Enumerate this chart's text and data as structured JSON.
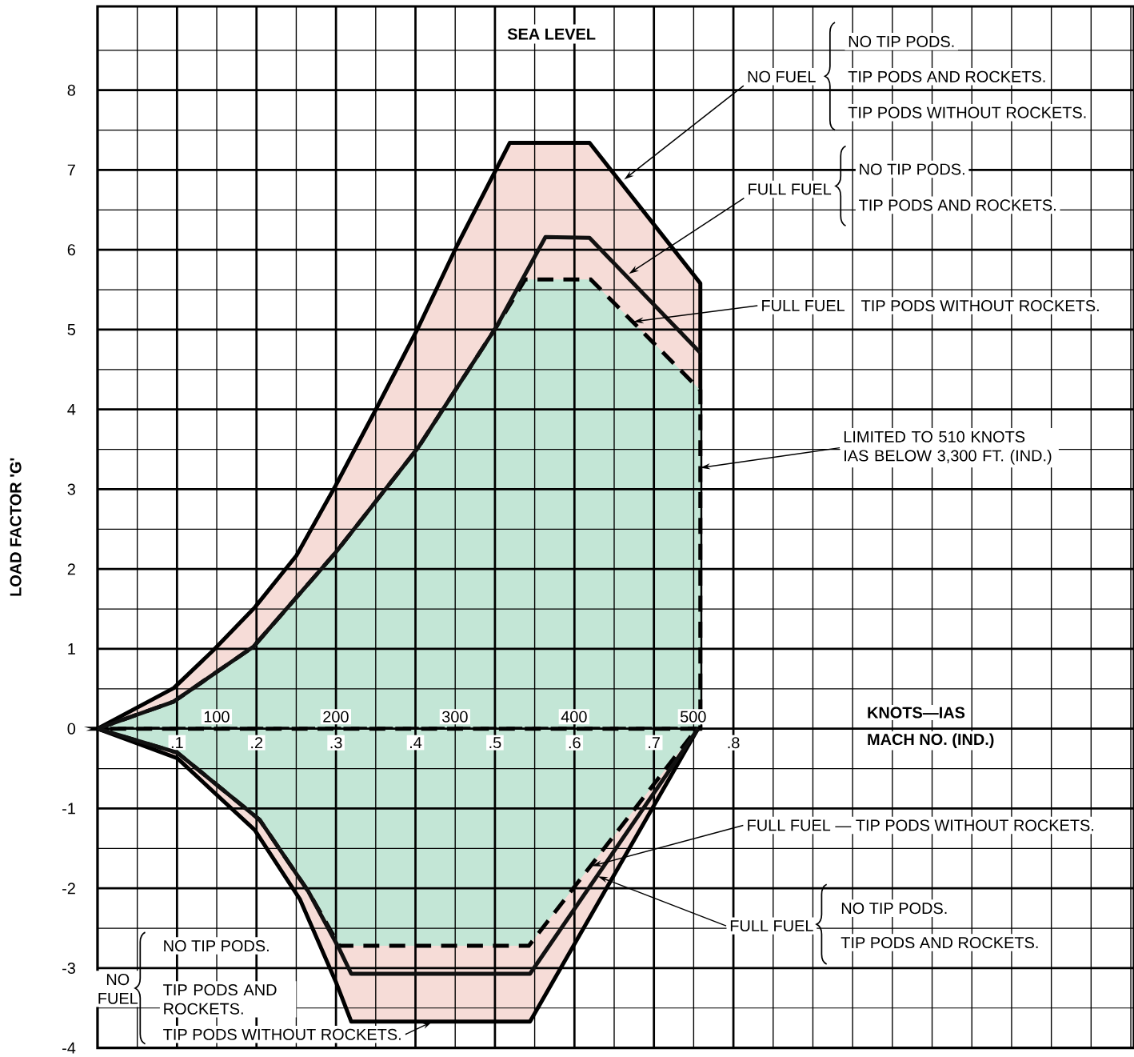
{
  "chart_data": {
    "type": "line",
    "title": "SEA LEVEL",
    "xlabel": "KNOTS—IAS",
    "x2label": "MACH NO. (IND.)",
    "ylabel": "LOAD FACTOR 'G'",
    "xlim": [
      0,
      870
    ],
    "xticks": [
      100,
      200,
      300,
      400,
      500
    ],
    "x2lim": [
      0,
      1.304
    ],
    "x2ticks": [
      {
        "value": 0.05,
        "label": null
      },
      {
        "value": 0.1,
        "label": ".1"
      },
      {
        "value": 0.15,
        "label": null
      },
      {
        "value": 0.2,
        "label": ".2"
      },
      {
        "value": 0.25,
        "label": null
      },
      {
        "value": 0.3,
        "label": ".3"
      },
      {
        "value": 0.35,
        "label": null
      },
      {
        "value": 0.4,
        "label": ".4"
      },
      {
        "value": 0.45,
        "label": null
      },
      {
        "value": 0.5,
        "label": ".5"
      },
      {
        "value": 0.55,
        "label": null
      },
      {
        "value": 0.6,
        "label": ".6"
      },
      {
        "value": 0.65,
        "label": null
      },
      {
        "value": 0.7,
        "label": ".7"
      },
      {
        "value": 0.75,
        "label": null
      },
      {
        "value": 0.8,
        "label": ".8"
      },
      {
        "value": 0.85,
        "label": null
      },
      {
        "value": 0.9,
        "label": null
      },
      {
        "value": 0.95,
        "label": null
      },
      {
        "value": 1.0,
        "label": null
      },
      {
        "value": 1.05,
        "label": null
      },
      {
        "value": 1.1,
        "label": null
      },
      {
        "value": 1.15,
        "label": null
      },
      {
        "value": 1.2,
        "label": null
      },
      {
        "value": 1.25,
        "label": null
      },
      {
        "value": 1.3,
        "label": null
      }
    ],
    "ylim": [
      -4,
      9.05
    ],
    "yticks": [
      -4,
      {
        "value": -3.5,
        "label": null
      },
      -3,
      {
        "value": -2.5,
        "label": null
      },
      -2,
      {
        "value": -1.5,
        "label": null
      },
      -1,
      {
        "value": -0.5,
        "label": null
      },
      0,
      {
        "value": 0.5,
        "label": null
      },
      1,
      {
        "value": 1.5,
        "label": null
      },
      2,
      {
        "value": 2.5,
        "label": null
      },
      3,
      {
        "value": 3.5,
        "label": null
      },
      4,
      {
        "value": 4.5,
        "label": null
      },
      5,
      {
        "value": 5.5,
        "label": null
      },
      6,
      {
        "value": 6.5,
        "label": null
      },
      7,
      {
        "value": 7.5,
        "label": null
      },
      8,
      {
        "value": 8.5,
        "label": null
      }
    ],
    "grid": true,
    "series": [
      {
        "type": "area",
        "color": "#f6dcd7",
        "line_style": "solid",
        "x": [
          0,
          64,
          97,
          132,
          167,
          200,
          234,
          269,
          302,
          335,
          346,
          413,
          506,
          506
        ],
        "values": [
          0,
          0.51,
          0.98,
          1.52,
          2.17,
          3.05,
          4.01,
          5.02,
          6.06,
          7.02,
          7.34,
          7.34,
          5.58,
          0
        ]
      },
      {
        "type": "area",
        "color": "#f6dcd7",
        "line_style": "solid",
        "x": [
          0,
          67,
          132,
          170,
          200,
          213,
          363,
          504
        ],
        "values": [
          0,
          -0.37,
          -1.27,
          -2.14,
          -3.17,
          -3.67,
          -3.67,
          0
        ]
      },
      {
        "type": "area",
        "color": "#c3e6d6",
        "line_style": "dashed",
        "x": [
          0,
          64,
          131,
          200,
          269,
          335,
          359,
          414,
          506,
          506
        ],
        "values": [
          0,
          0.34,
          1.03,
          2.21,
          3.52,
          5.04,
          5.63,
          5.63,
          4.24,
          0
        ]
      },
      {
        "type": "area",
        "color": "#c3e6d6",
        "line_style": "dashed",
        "x": [
          0,
          67,
          136,
          177,
          203,
          362,
          503
        ],
        "values": [
          0,
          -0.3,
          -1.14,
          -2.04,
          -2.72,
          -2.72,
          0
        ]
      },
      {
        "color": "#111111",
        "line_style": "solid",
        "x": [
          0,
          64,
          131,
          200,
          269,
          335,
          376,
          413,
          506
        ],
        "values": [
          0,
          0.34,
          1.03,
          2.21,
          3.52,
          5.04,
          6.16,
          6.15,
          4.71
        ]
      },
      {
        "color": "#111111",
        "line_style": "solid",
        "x": [
          0,
          67,
          136,
          177,
          203,
          213,
          363,
          504
        ],
        "values": [
          0,
          -0.3,
          -1.14,
          -2.04,
          -2.76,
          -3.07,
          -3.07,
          0
        ]
      }
    ],
    "annotations": [
      {
        "text": "NO FUEL",
        "x": 442,
        "y": 6.88
      },
      "NO TIP PODS.",
      "TIP PODS AND ROCKETS.",
      "TIP PODS WITHOUT ROCKETS.",
      {
        "text": "FULL FUEL",
        "x": 446,
        "y": 5.7
      },
      "NO TIP PODS.",
      "TIP PODS AND ROCKETS.",
      {
        "text": "FULL FUEL",
        "x": 450,
        "y": 5.1
      },
      "TIP PODS WITHOUT ROCKETS.",
      {
        "text": "LIMITED TO 510 KNOTS IAS BELOW 3,300 FT. (IND.)",
        "x": 506,
        "y": 3.27
      },
      {
        "text": "FULL FUEL — TIP PODS WITHOUT ROCKETS.",
        "x": 415,
        "y": -1.72
      },
      {
        "text": "FULL FUEL",
        "x": 420,
        "y": -1.85
      },
      "NO TIP PODS.",
      "TIP PODS AND ROCKETS.",
      "NO TIP PODS.",
      "NO FUEL",
      "TIP PODS AND ROCKETS.",
      {
        "text": "TIP PODS WITHOUT ROCKETS.",
        "x": 281,
        "y": -3.67
      }
    ]
  }
}
